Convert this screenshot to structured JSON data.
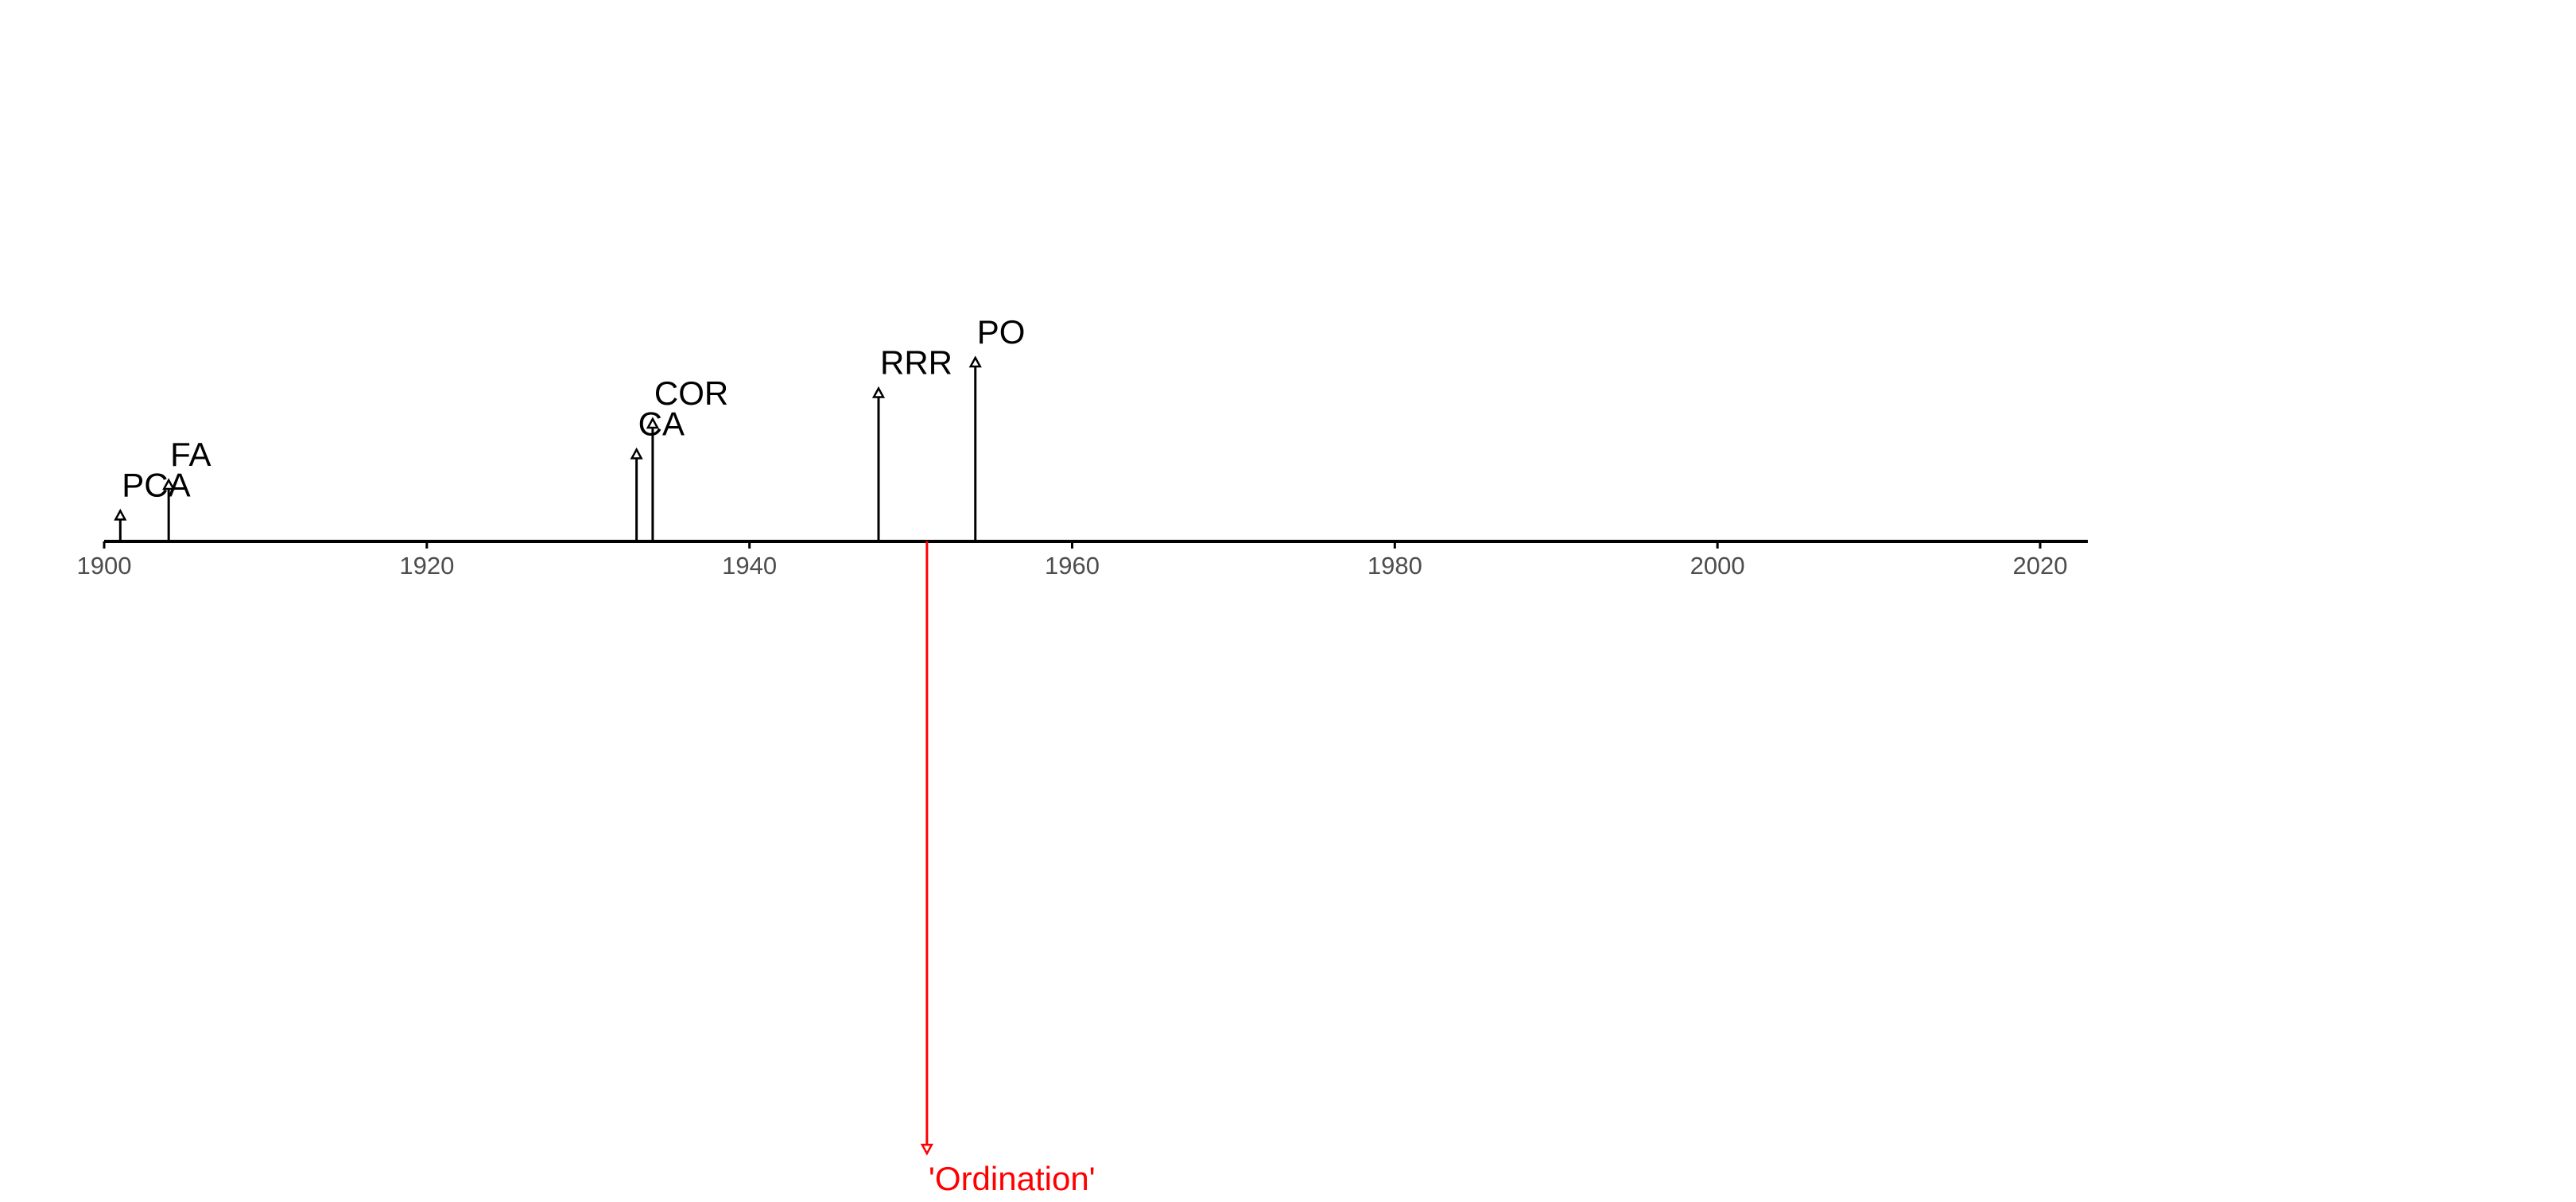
{
  "chart_data": {
    "type": "timeline",
    "title": "",
    "xlabel": "",
    "ylabel": "",
    "xlim": [
      1900,
      2023
    ],
    "ticks": [
      1900,
      1920,
      1940,
      1960,
      1980,
      2000,
      2020
    ],
    "tick_labels": [
      "1900",
      "1920",
      "1940",
      "1960",
      "1980",
      "2000",
      "2020"
    ],
    "events": [
      {
        "label": "PCA",
        "year": 1901,
        "height": 1
      },
      {
        "label": "FA",
        "year": 1904,
        "height": 2
      },
      {
        "label": "CA",
        "year": 1933,
        "height": 3
      },
      {
        "label": "COR",
        "year": 1934,
        "height": 4
      },
      {
        "label": "RRR",
        "year": 1948,
        "height": 5
      },
      {
        "label": "PO",
        "year": 1954,
        "height": 6
      }
    ],
    "highlight": {
      "label": "'Ordination'",
      "year": 1951,
      "height": -20,
      "color": "#ff0000"
    },
    "grid": false,
    "legend": "none",
    "colors": {
      "axis": "#000000",
      "events": "#000000",
      "highlight": "#ff0000",
      "tick_text": "#4d4d4d"
    }
  }
}
